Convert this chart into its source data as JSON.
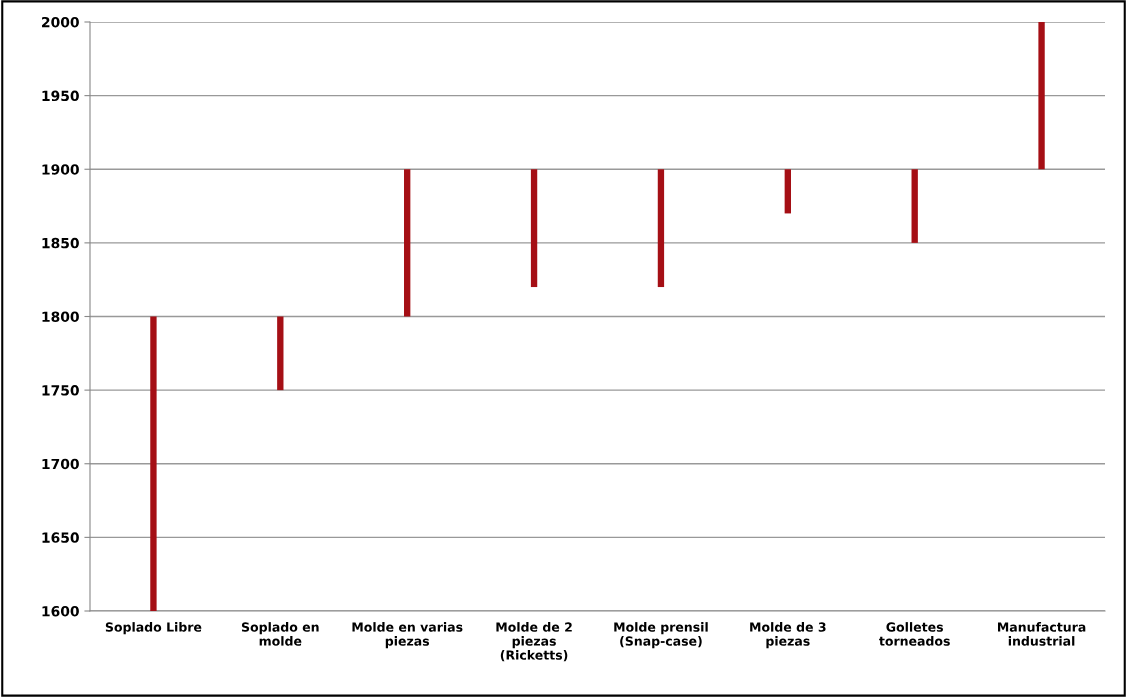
{
  "chart_data": {
    "type": "bar",
    "categories": [
      "Soplado Libre",
      "Soplado en\nmolde",
      "Molde en varias\npiezas",
      "Molde de 2\npiezas\n(Ricketts)",
      "Molde prensil\n(Snap-case)",
      "Molde de 3\npiezas",
      "Golletes\ntorneados",
      "Manufactura\nindustrial"
    ],
    "base": [
      1600,
      1750,
      1800,
      1820,
      1820,
      1870,
      1850,
      1900
    ],
    "values": [
      200,
      50,
      100,
      80,
      80,
      30,
      50,
      100
    ],
    "color": "#a50f15",
    "ylim": [
      1600,
      2000
    ],
    "yticks": [
      1600,
      1650,
      1700,
      1750,
      1800,
      1850,
      1900,
      1950,
      2000
    ],
    "grid": "y"
  }
}
